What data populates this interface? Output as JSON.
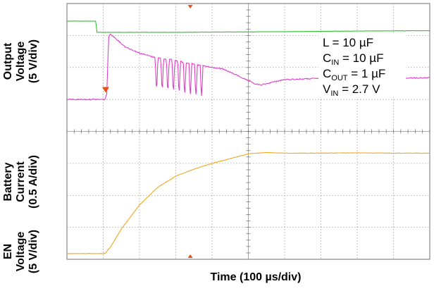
{
  "chart_data": {
    "type": "line",
    "title": "",
    "xlabel": "Time (100 µs/div)",
    "x_divisions": 10,
    "y_divisions": 8,
    "grid": true,
    "channel_labels": [
      {
        "lines": [
          "Output",
          "Voltage",
          "(5 V/div)"
        ]
      },
      {
        "lines": [
          "Battery",
          "Current",
          "(0.5 A/div)"
        ]
      },
      {
        "lines": [
          "EN",
          "Voltage",
          "(5 V/div)"
        ]
      }
    ],
    "conditions": [
      {
        "main": "L = 10 µF",
        "sub": "",
        "rest": ""
      },
      {
        "main": "C",
        "sub": "IN",
        "rest": " = 10 µF"
      },
      {
        "main": "C",
        "sub": "OUT",
        "rest": " = 1 µF"
      },
      {
        "main": "V",
        "sub": "IN",
        "rest": " = 2.7 V"
      }
    ],
    "series": [
      {
        "name": "Output Voltage",
        "color": "#f0a81e",
        "points": [
          [
            0,
            7.82
          ],
          [
            1.05,
            7.82
          ],
          [
            1.2,
            7.62
          ],
          [
            1.5,
            7.05
          ],
          [
            2,
            6.3
          ],
          [
            2.5,
            5.75
          ],
          [
            3,
            5.4
          ],
          [
            3.5,
            5.18
          ],
          [
            4,
            5.0
          ],
          [
            4.5,
            4.85
          ],
          [
            5,
            4.7
          ],
          [
            5.5,
            4.66
          ],
          [
            6,
            4.68
          ],
          [
            7,
            4.68
          ],
          [
            8,
            4.67
          ],
          [
            9,
            4.68
          ],
          [
            10,
            4.68
          ]
        ]
      },
      {
        "name": "Battery Current",
        "color": "#e040c8",
        "points": [
          [
            0,
            3.0
          ],
          [
            1.05,
            3.0
          ],
          [
            1.1,
            2.82
          ],
          [
            1.15,
            1.05
          ],
          [
            1.2,
            0.95
          ],
          [
            1.3,
            1.05
          ],
          [
            1.6,
            1.35
          ],
          [
            2,
            1.55
          ],
          [
            2.4,
            1.68
          ],
          [
            3.0,
            1.78
          ],
          [
            3.5,
            1.9
          ],
          [
            4,
            2.0
          ],
          [
            4.3,
            2.05
          ],
          [
            4.7,
            2.25
          ],
          [
            5.0,
            2.42
          ],
          [
            5.2,
            2.52
          ],
          [
            5.35,
            2.55
          ],
          [
            5.7,
            2.45
          ],
          [
            6,
            2.38
          ],
          [
            7,
            2.34
          ],
          [
            8,
            2.35
          ],
          [
            9,
            2.34
          ],
          [
            10,
            2.32
          ]
        ]
      },
      {
        "name": "EN Voltage",
        "color": "#30c030",
        "points": [
          [
            0,
            0.55
          ],
          [
            0.8,
            0.55
          ],
          [
            0.82,
            0.9
          ],
          [
            3,
            0.9
          ],
          [
            6,
            0.88
          ],
          [
            8,
            0.86
          ],
          [
            10,
            0.85
          ]
        ]
      }
    ]
  }
}
